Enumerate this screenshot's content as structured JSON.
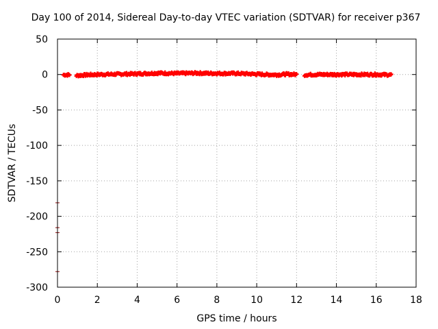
{
  "chart_data": {
    "type": "scatter",
    "title": "Day 100 of 2014, Sidereal Day-to-day VTEC variation (SDTVAR) for receiver p367",
    "xlabel": "GPS time / hours",
    "ylabel": "SDTVAR / TECUs",
    "xlim": [
      0,
      18
    ],
    "ylim": [
      -300,
      50
    ],
    "xticks": [
      0,
      2,
      4,
      6,
      8,
      10,
      12,
      14,
      16,
      18
    ],
    "yticks": [
      50,
      0,
      -50,
      -100,
      -150,
      -200,
      -250,
      -300
    ],
    "grid": true,
    "marker": "plus",
    "color": "#ff0000",
    "outlier_color": "#8b0000",
    "segments": [
      {
        "name": "main-band-early",
        "x": [
          0.3,
          0.6
        ],
        "y": [
          -0.5,
          -0.5
        ]
      },
      {
        "name": "main-band",
        "x": [
          0.95,
          1.5,
          2.0,
          3.0,
          4.0,
          5.0,
          6.0,
          7.0,
          8.0,
          9.0,
          10.0,
          10.5,
          11.0,
          11.5,
          12.0
        ],
        "y": [
          -1.5,
          -0.5,
          0.0,
          0.5,
          1.0,
          2.0,
          1.5,
          2.0,
          1.5,
          1.5,
          0.5,
          0.0,
          -0.5,
          0.5,
          0.0
        ]
      },
      {
        "name": "main-band-late",
        "x": [
          12.4,
          13.0,
          14.0,
          15.0,
          16.0,
          16.75
        ],
        "y": [
          -0.5,
          0.0,
          0.0,
          0.0,
          0.0,
          -0.5
        ]
      }
    ],
    "outliers": [
      {
        "x": 0.0,
        "y": -181
      },
      {
        "x": 0.0,
        "y": -216
      },
      {
        "x": 0.0,
        "y": -223
      },
      {
        "x": 0.0,
        "y": -278
      }
    ]
  }
}
